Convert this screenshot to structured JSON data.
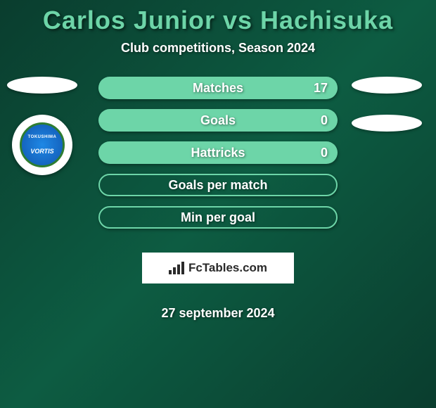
{
  "header": {
    "title": "Carlos Junior vs Hachisuka",
    "subtitle": "Club competitions, Season 2024"
  },
  "colors": {
    "accent": "#6dd5a8",
    "text": "#ffffff",
    "bg_gradient_start": "#0a3d2e",
    "bg_gradient_mid": "#0d5c42"
  },
  "left_player": {
    "club_logo": {
      "top_text": "TOKUSHIMA",
      "main_text": "VORTIS",
      "outer_ring_color": "#2e7d32",
      "inner_color": "#1565c0"
    }
  },
  "stats": [
    {
      "label": "Matches",
      "right_value": "17",
      "filled": true
    },
    {
      "label": "Goals",
      "right_value": "0",
      "filled": true
    },
    {
      "label": "Hattricks",
      "right_value": "0",
      "filled": true
    },
    {
      "label": "Goals per match",
      "right_value": "",
      "filled": false
    },
    {
      "label": "Min per goal",
      "right_value": "",
      "filled": false
    }
  ],
  "attribution": {
    "text": "FcTables.com"
  },
  "date": "27 september 2024"
}
